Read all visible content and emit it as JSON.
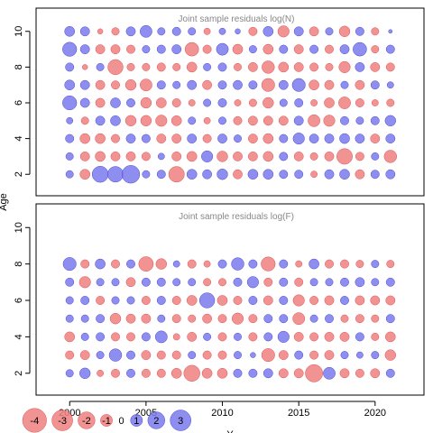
{
  "colors": {
    "negative": "#f08080",
    "negative_stroke": "#e05050",
    "positive": "#7a7aee",
    "positive_stroke": "#4a4ad0"
  },
  "shared": {
    "xlabel": "Y",
    "ylabel": "Age",
    "x_ticks": [
      "2000",
      "2005",
      "2010",
      "2015",
      "2020"
    ],
    "x_tick_values": [
      2000,
      2005,
      2010,
      2015,
      2020
    ],
    "y_ticks": [
      "2",
      "4",
      "6",
      "8",
      "10"
    ],
    "y_tick_values": [
      2,
      4,
      6,
      8,
      10
    ]
  },
  "legend": {
    "items": [
      {
        "label": "-4",
        "value": -4
      },
      {
        "label": "-3",
        "value": -3
      },
      {
        "label": "-2",
        "value": -2
      },
      {
        "label": "-1",
        "value": -1
      },
      {
        "label": "0",
        "value": 0
      },
      {
        "label": "1",
        "value": 1
      },
      {
        "label": "2",
        "value": 2
      },
      {
        "label": "3",
        "value": 3
      }
    ]
  },
  "chart_data": [
    {
      "type": "scatter",
      "title": "Joint sample residuals log(N)",
      "xlabel": "",
      "ylabel": "Age",
      "xlim": [
        1997.8,
        2023.2
      ],
      "ylim": [
        0.8,
        11.3
      ],
      "years": [
        2000,
        2001,
        2002,
        2003,
        2004,
        2005,
        2006,
        2007,
        2008,
        2009,
        2010,
        2011,
        2012,
        2013,
        2014,
        2015,
        2016,
        2017,
        2018,
        2019,
        2020,
        2021
      ],
      "ages": [
        2,
        3,
        4,
        5,
        6,
        7,
        8,
        9,
        10
      ],
      "residuals": {
        "2": [
          0.4,
          -0.7,
          1.8,
          1.7,
          2.2,
          0.4,
          0.5,
          -1.7,
          0.7,
          0.6,
          0.8,
          -0.6,
          0.7,
          0.7,
          0.5,
          0.5,
          -0.3,
          0.6,
          0.7,
          -0.6,
          0.5,
          0.6
        ],
        "3": [
          0.4,
          -0.6,
          -0.7,
          -0.6,
          -0.6,
          -0.5,
          0.3,
          -0.6,
          -0.7,
          0.9,
          -0.8,
          -0.6,
          -0.6,
          -0.7,
          0.5,
          -0.6,
          -0.4,
          -0.6,
          -1.7,
          -0.5,
          0.4,
          -1.1
        ],
        "4": [
          0.5,
          -0.7,
          -0.7,
          -0.5,
          0.6,
          0.5,
          -0.6,
          -0.6,
          0.6,
          -0.5,
          0.6,
          0.4,
          -0.6,
          -0.7,
          0.5,
          0.9,
          0.6,
          0.6,
          0.7,
          0.6,
          -0.6,
          0.6
        ],
        "5": [
          0.3,
          -0.4,
          0.6,
          0.7,
          -0.8,
          -0.8,
          -0.9,
          -0.7,
          0.4,
          -0.3,
          0.4,
          -0.5,
          -0.6,
          -0.6,
          -0.6,
          0.6,
          -1.0,
          -0.9,
          0.5,
          0.4,
          0.5,
          0.8
        ],
        "6": [
          1.4,
          0.6,
          -0.6,
          0.7,
          0.5,
          -0.8,
          -0.7,
          -0.5,
          -0.3,
          0.4,
          0.5,
          -0.3,
          -0.4,
          -0.8,
          0.4,
          0.5,
          -0.3,
          -0.7,
          -1.0,
          -0.5,
          -0.3,
          -0.4
        ],
        "7": [
          0.7,
          0.6,
          -0.6,
          -0.5,
          -0.8,
          -1.0,
          0.5,
          0.4,
          0.6,
          -0.6,
          0.5,
          0.6,
          0.5,
          -1.2,
          0.6,
          1.2,
          -0.7,
          -0.6,
          0.4,
          -0.6,
          0.5,
          0.3
        ],
        "8": [
          0.5,
          -0.2,
          0.4,
          -1.6,
          -0.4,
          -0.4,
          -0.5,
          -0.4,
          -0.7,
          0.4,
          0.5,
          -0.4,
          -0.6,
          -1.1,
          -0.7,
          -0.6,
          -0.5,
          -0.4,
          -0.9,
          0.6,
          -0.6,
          -0.5
        ],
        "9": [
          1.4,
          0.6,
          -0.6,
          -0.6,
          -0.5,
          0.4,
          0.5,
          0.6,
          -1.3,
          -0.5,
          1.0,
          -0.7,
          0.4,
          -0.7,
          0.5,
          -0.6,
          0.5,
          -0.5,
          0.6,
          1.3,
          -0.4,
          0.5
        ],
        "10": [
          0.7,
          0.6,
          -0.2,
          -0.4,
          0.6,
          1.0,
          0.4,
          0.5,
          0.4,
          -0.3,
          0.3,
          0.2,
          -0.5,
          0.7,
          -0.9,
          0.6,
          -0.6,
          0.4,
          -0.8,
          0.5,
          -0.4,
          0.1
        ]
      }
    },
    {
      "type": "scatter",
      "title": "Joint sample residuals log(F)",
      "xlabel": "Y",
      "ylabel": "",
      "xlim": [
        1997.8,
        2023.2
      ],
      "ylim": [
        0.8,
        11.3
      ],
      "years": [
        2000,
        2001,
        2002,
        2003,
        2004,
        2005,
        2006,
        2007,
        2008,
        2009,
        2010,
        2011,
        2012,
        2013,
        2014,
        2015,
        2016,
        2017,
        2018,
        2019,
        2020,
        2021
      ],
      "ages": [
        2,
        3,
        4,
        5,
        6,
        7,
        8
      ],
      "residuals": {
        "2": [
          0.4,
          0.8,
          -0.3,
          -0.5,
          0.5,
          -0.5,
          -0.5,
          -0.7,
          -1.8,
          -0.7,
          -0.7,
          0.5,
          0.5,
          0.6,
          -0.6,
          -0.6,
          -2.1,
          1.0,
          -0.6,
          -0.5,
          -0.6,
          0.5
        ],
        "3": [
          -0.5,
          -0.6,
          0.4,
          1.1,
          0.5,
          -0.6,
          -0.5,
          -0.5,
          0.4,
          -0.5,
          -0.5,
          0.4,
          0.2,
          -1.2,
          -0.6,
          0.5,
          -0.5,
          -0.6,
          0.4,
          0.3,
          0.4,
          -0.8
        ],
        "4": [
          -0.7,
          0.4,
          0.5,
          -0.5,
          -0.5,
          0.5,
          1.0,
          -0.3,
          -0.6,
          0.4,
          -0.5,
          0.4,
          -0.5,
          0.5,
          0.9,
          -0.6,
          -0.5,
          -0.6,
          -0.6,
          0.5,
          -0.4,
          -0.7
        ],
        "5": [
          0.4,
          0.4,
          0.5,
          -0.8,
          -0.6,
          -0.6,
          0.4,
          -0.5,
          -0.4,
          -0.6,
          -0.5,
          -0.9,
          -0.5,
          0.5,
          0.5,
          -1.0,
          0.4,
          0.5,
          -0.4,
          -0.5,
          -0.4,
          0.5
        ],
        "6": [
          0.4,
          0.5,
          -0.5,
          0.4,
          0.4,
          -0.5,
          0.5,
          -0.5,
          -0.7,
          1.6,
          -0.7,
          -0.5,
          0.5,
          -0.6,
          0.5,
          -0.9,
          -0.5,
          -0.6,
          0.5,
          -0.6,
          -0.6,
          -0.6
        ],
        "7": [
          0.5,
          -0.9,
          0.4,
          0.4,
          -0.6,
          0.5,
          0.5,
          0.4,
          0.4,
          -0.4,
          -0.4,
          0.5,
          0.9,
          -0.5,
          0.5,
          -0.5,
          0.4,
          0.4,
          0.5,
          0.6,
          0.4,
          0.5
        ],
        "8": [
          1.2,
          -0.5,
          0.7,
          -0.5,
          0.5,
          -1.5,
          -0.8,
          0.3,
          -0.5,
          -0.3,
          0.5,
          1.1,
          0.5,
          -1.4,
          0.5,
          -0.3,
          0.7,
          -0.5,
          -0.5,
          -0.4,
          0.4,
          -0.4
        ]
      }
    }
  ]
}
